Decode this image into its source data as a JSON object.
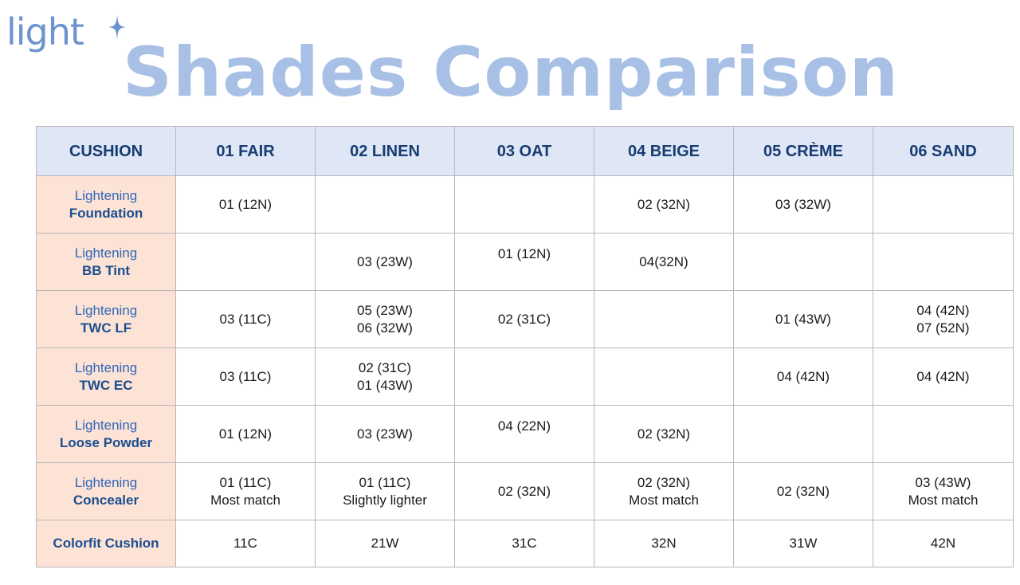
{
  "brand": {
    "logo_text": "light"
  },
  "page": {
    "title": "Shades Comparison"
  },
  "table": {
    "corner_header": "CUSHION",
    "columns": [
      "01 FAIR",
      "02 LINEN",
      "03 OAT",
      "04 BEIGE",
      "05 CRÈME",
      "06 SAND"
    ],
    "rows": [
      {
        "prefix": "Lightening",
        "name": "Foundation",
        "cells": [
          [
            "01 (12N)"
          ],
          [],
          [],
          [
            "02 (32N)"
          ],
          [
            "03 (32W)"
          ],
          []
        ]
      },
      {
        "prefix": "Lightening",
        "name": "BB Tint",
        "cells": [
          [],
          [
            "03 (23W)"
          ],
          [
            "01 (12N)"
          ],
          [
            "04(32N)"
          ],
          [],
          []
        ]
      },
      {
        "prefix": "Lightening",
        "name": "TWC LF",
        "cells": [
          [
            "03 (11C)"
          ],
          [
            "05 (23W)",
            "06 (32W)"
          ],
          [
            "02 (31C)"
          ],
          [],
          [
            "01 (43W)"
          ],
          [
            "04 (42N)",
            "07 (52N)"
          ]
        ]
      },
      {
        "prefix": "Lightening",
        "name": "TWC EC",
        "cells": [
          [
            "03 (11C)"
          ],
          [
            "02 (31C)",
            "01 (43W)"
          ],
          [],
          [],
          [
            "04 (42N)"
          ],
          [
            "04 (42N)"
          ]
        ]
      },
      {
        "prefix": "Lightening",
        "name": "Loose Powder",
        "cells": [
          [
            "01 (12N)"
          ],
          [
            "03 (23W)"
          ],
          [
            "04 (22N)"
          ],
          [
            "02 (32N)"
          ],
          [],
          []
        ]
      },
      {
        "prefix": "Lightening",
        "name": "Concealer",
        "cells": [
          [
            "01 (11C)",
            "Most match"
          ],
          [
            "01 (11C)",
            "Slightly lighter"
          ],
          [
            "02 (32N)"
          ],
          [
            "02 (32N)",
            "Most match"
          ],
          [
            "02 (32N)"
          ],
          [
            "03 (43W)",
            "Most match"
          ]
        ]
      }
    ],
    "last_row": {
      "name": "Colorfit Cushion",
      "cells": [
        "11C",
        "21W",
        "31C",
        "32N",
        "31W",
        "42N"
      ]
    }
  },
  "colors": {
    "header_bg": "#dfe6f6",
    "header_text": "#173c72",
    "row_label_bg": "#fde2d6",
    "title": "#a9c0e6",
    "logo": "#6f93d0"
  }
}
